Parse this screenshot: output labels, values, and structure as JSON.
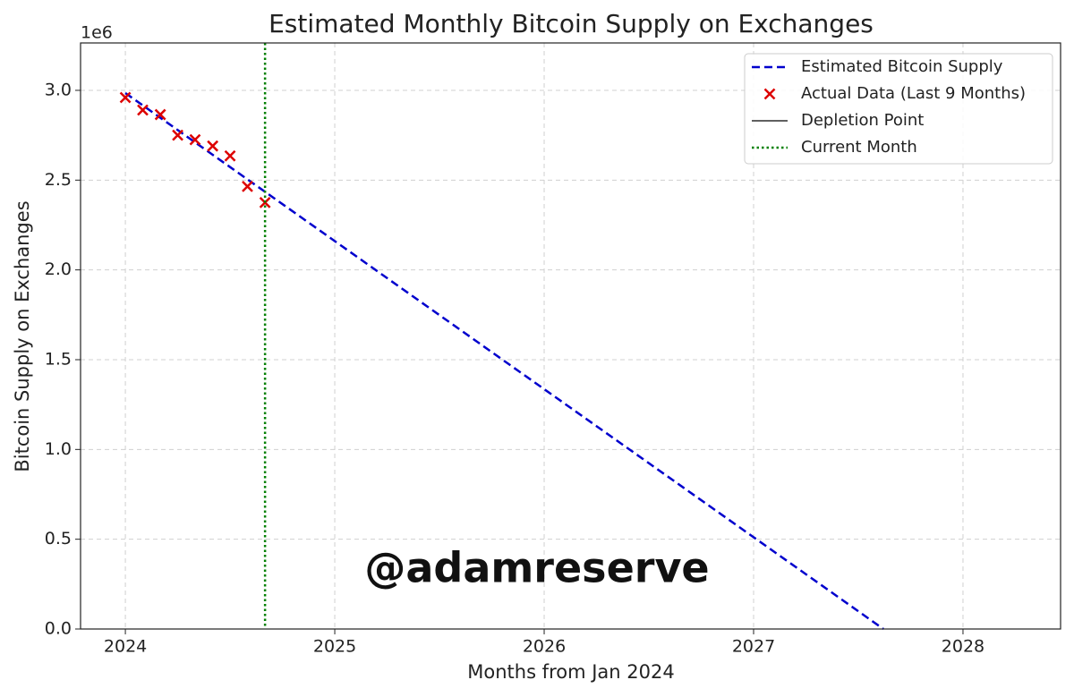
{
  "chart_data": {
    "type": "line",
    "title": "Estimated Monthly Bitcoin Supply on Exchanges",
    "x_label": "Months from Jan 2024",
    "y_label": "Bitcoin Supply on Exchanges",
    "y_offset_label": "1e6",
    "xlim": [
      2023.786,
      2028.466
    ],
    "ylim": [
      0,
      3.264
    ],
    "xticks": [
      2024,
      2025,
      2026,
      2027,
      2028
    ],
    "yticks": [
      {
        "value": 0,
        "label": "0.0"
      },
      0.5,
      {
        "value": 1,
        "label": "1.0"
      },
      1.5,
      {
        "value": 2,
        "label": "2.0"
      },
      2.5,
      {
        "value": 3,
        "label": "3.0"
      }
    ],
    "grid": true,
    "legend": "upper right",
    "series": [
      {
        "name": "Estimated Bitcoin Supply",
        "type": "line",
        "style": "dashed",
        "color": "#0000cd",
        "x": [
          2024,
          2027.62
        ],
        "values": [
          2.985,
          0
        ]
      },
      {
        "name": "Actual Data (Last 9 Months)",
        "type": "scatter",
        "color": "#dd0000",
        "x": [
          2024,
          2024.083,
          2024.167,
          2024.25,
          2024.333,
          2024.417,
          2024.5,
          2024.583,
          2024.667
        ],
        "values": [
          2.96,
          2.89,
          2.865,
          2.75,
          2.725,
          2.69,
          2.635,
          2.465,
          2.375
        ]
      },
      {
        "name": "Depletion Point",
        "type": "vline",
        "style": "solid",
        "color": "#000000"
      },
      {
        "name": "Current Month",
        "type": "vline",
        "style": "dotted",
        "color": "#008000",
        "x": 2024.667
      }
    ],
    "annotation": "@adamreserve"
  }
}
